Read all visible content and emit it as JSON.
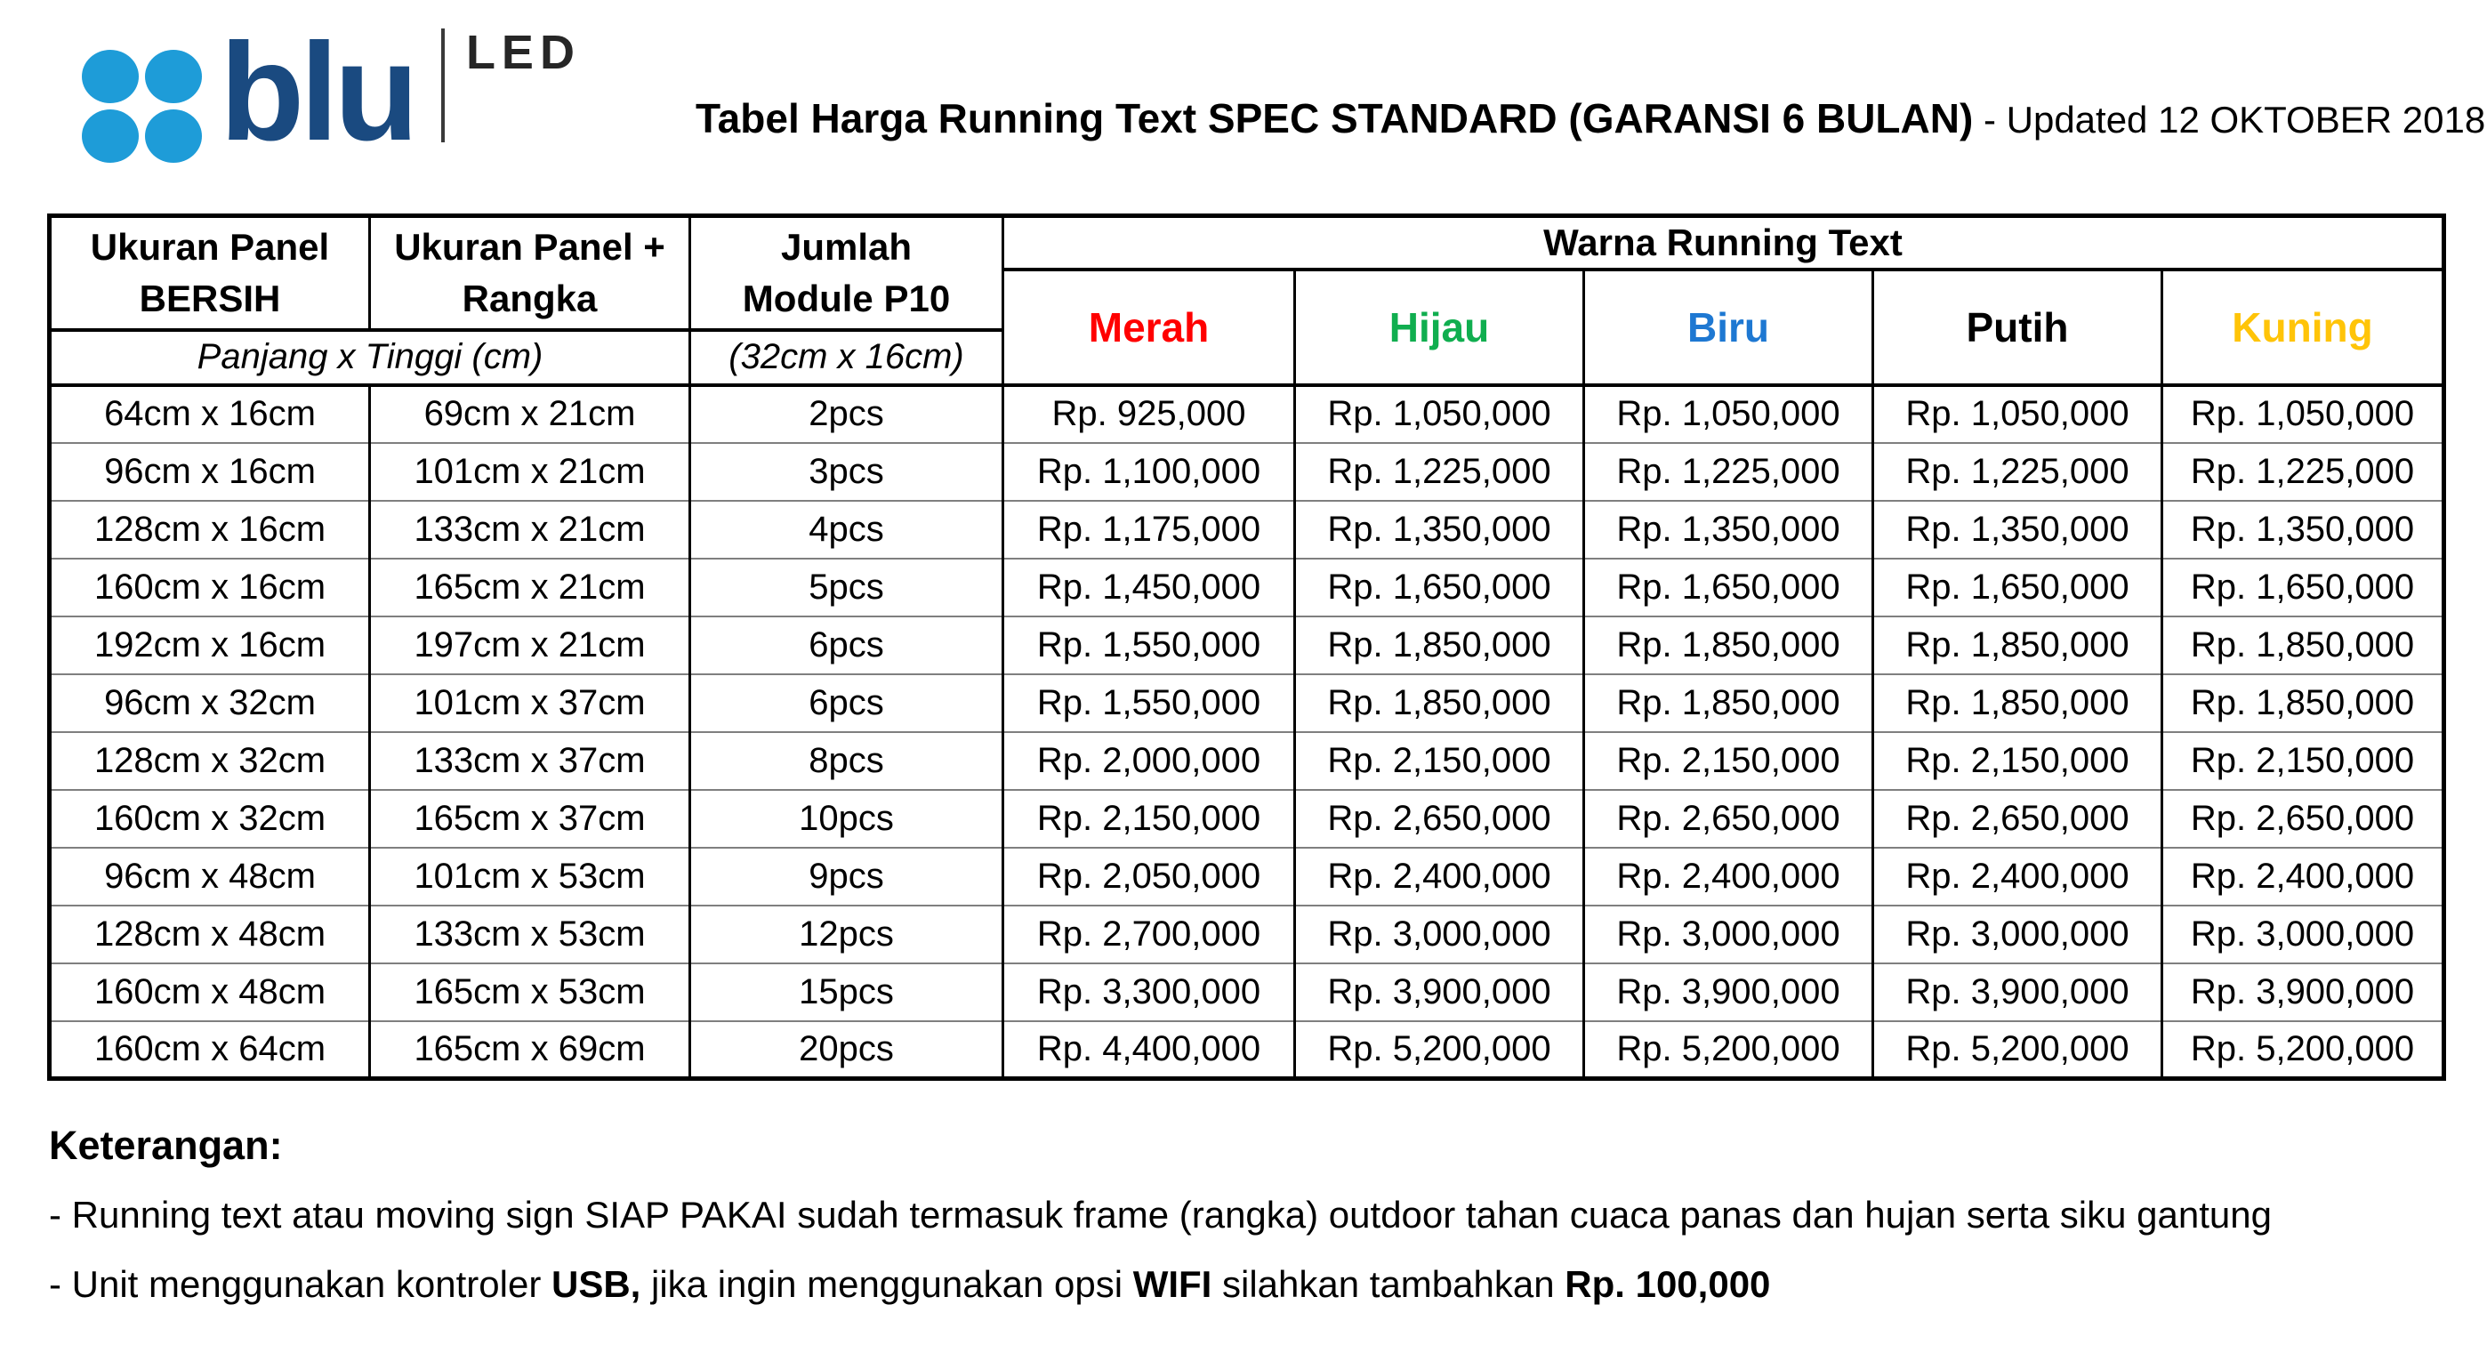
{
  "logo": {
    "brand": "blu",
    "product": "LED",
    "dot_color": "#1e9cd8",
    "brand_color": "#1a4a80"
  },
  "header": {
    "title": "Tabel Harga Running Text SPEC STANDARD (GARANSI 6 BULAN)",
    "updated": "- Updated 12 OKTOBER 2018"
  },
  "table": {
    "columns": {
      "bersih_line1": "Ukuran Panel",
      "bersih_line2": "BERSIH",
      "rangka_line1": "Ukuran Panel +",
      "rangka_line2": "Rangka",
      "module_line1": "Jumlah",
      "module_line2": "Module P10",
      "sub_left": "Panjang x Tinggi (cm)",
      "sub_module": "(32cm x 16cm)",
      "warna_group": "Warna Running Text"
    },
    "colors": [
      {
        "label": "Merah",
        "color": "#ff0000"
      },
      {
        "label": "Hijau",
        "color": "#10ae4f"
      },
      {
        "label": "Biru",
        "color": "#1e78d2"
      },
      {
        "label": "Putih",
        "color": "#000000"
      },
      {
        "label": "Kuning",
        "color": "#ffc408"
      }
    ],
    "rows": [
      {
        "bersih": "64cm x 16cm",
        "rangka": "69cm x 21cm",
        "module": "2pcs",
        "prices": [
          "Rp. 925,000",
          "Rp. 1,050,000",
          "Rp. 1,050,000",
          "Rp. 1,050,000",
          "Rp. 1,050,000"
        ]
      },
      {
        "bersih": "96cm x 16cm",
        "rangka": "101cm x 21cm",
        "module": "3pcs",
        "prices": [
          "Rp. 1,100,000",
          "Rp. 1,225,000",
          "Rp. 1,225,000",
          "Rp. 1,225,000",
          "Rp. 1,225,000"
        ]
      },
      {
        "bersih": "128cm x 16cm",
        "rangka": "133cm x 21cm",
        "module": "4pcs",
        "prices": [
          "Rp. 1,175,000",
          "Rp. 1,350,000",
          "Rp. 1,350,000",
          "Rp. 1,350,000",
          "Rp. 1,350,000"
        ]
      },
      {
        "bersih": "160cm x 16cm",
        "rangka": "165cm x 21cm",
        "module": "5pcs",
        "prices": [
          "Rp. 1,450,000",
          "Rp. 1,650,000",
          "Rp. 1,650,000",
          "Rp. 1,650,000",
          "Rp. 1,650,000"
        ]
      },
      {
        "bersih": "192cm x 16cm",
        "rangka": "197cm x 21cm",
        "module": "6pcs",
        "prices": [
          "Rp. 1,550,000",
          "Rp. 1,850,000",
          "Rp. 1,850,000",
          "Rp. 1,850,000",
          "Rp. 1,850,000"
        ]
      },
      {
        "bersih": "96cm x 32cm",
        "rangka": "101cm x 37cm",
        "module": "6pcs",
        "prices": [
          "Rp. 1,550,000",
          "Rp. 1,850,000",
          "Rp. 1,850,000",
          "Rp. 1,850,000",
          "Rp. 1,850,000"
        ]
      },
      {
        "bersih": "128cm x 32cm",
        "rangka": "133cm x 37cm",
        "module": "8pcs",
        "prices": [
          "Rp. 2,000,000",
          "Rp. 2,150,000",
          "Rp. 2,150,000",
          "Rp. 2,150,000",
          "Rp. 2,150,000"
        ]
      },
      {
        "bersih": "160cm x 32cm",
        "rangka": "165cm x 37cm",
        "module": "10pcs",
        "prices": [
          "Rp. 2,150,000",
          "Rp. 2,650,000",
          "Rp. 2,650,000",
          "Rp. 2,650,000",
          "Rp. 2,650,000"
        ]
      },
      {
        "bersih": "96cm x 48cm",
        "rangka": "101cm x 53cm",
        "module": "9pcs",
        "prices": [
          "Rp. 2,050,000",
          "Rp. 2,400,000",
          "Rp. 2,400,000",
          "Rp. 2,400,000",
          "Rp. 2,400,000"
        ]
      },
      {
        "bersih": "128cm x 48cm",
        "rangka": "133cm x 53cm",
        "module": "12pcs",
        "prices": [
          "Rp. 2,700,000",
          "Rp. 3,000,000",
          "Rp. 3,000,000",
          "Rp. 3,000,000",
          "Rp. 3,000,000"
        ]
      },
      {
        "bersih": "160cm x 48cm",
        "rangka": "165cm x 53cm",
        "module": "15pcs",
        "prices": [
          "Rp. 3,300,000",
          "Rp. 3,900,000",
          "Rp. 3,900,000",
          "Rp. 3,900,000",
          "Rp. 3,900,000"
        ]
      },
      {
        "bersih": "160cm x 64cm",
        "rangka": "165cm x 69cm",
        "module": "20pcs",
        "prices": [
          "Rp. 4,400,000",
          "Rp. 5,200,000",
          "Rp. 5,200,000",
          "Rp. 5,200,000",
          "Rp. 5,200,000"
        ]
      }
    ]
  },
  "keterangan": {
    "heading": "Keterangan:",
    "line1": "- Running text atau moving sign SIAP PAKAI sudah termasuk frame (rangka) outdoor tahan cuaca panas dan hujan serta siku gantung",
    "line2_segments": [
      {
        "text": "- Unit menggunakan kontroler ",
        "bold": false
      },
      {
        "text": "USB, ",
        "bold": true
      },
      {
        "text": "jika ingin menggunakan opsi ",
        "bold": false
      },
      {
        "text": "WIFI",
        "bold": true
      },
      {
        "text": " silahkan tambahkan ",
        "bold": false
      },
      {
        "text": "Rp. 100,000",
        "bold": true
      }
    ]
  }
}
